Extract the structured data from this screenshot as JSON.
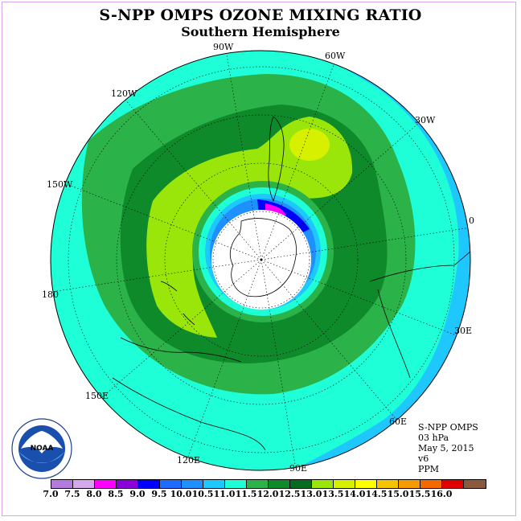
{
  "title": "S-NPP OMPS OZONE MIXING RATIO",
  "subtitle": "Southern Hemisphere",
  "longitude_labels": {
    "w90": "90W",
    "w60": "60W",
    "w30": "30W",
    "e0": "0",
    "w120": "120W",
    "w150": "150W",
    "d180": "180",
    "e30": "30E",
    "e60": "60E",
    "e90": "90E",
    "e120": "120E",
    "e150": "150E"
  },
  "info": {
    "instrument": "S-NPP OMPS",
    "level": "03 hPa",
    "date": "May 5, 2015",
    "version": "v6",
    "units": "PPM"
  },
  "logo_text": "NOAA",
  "colorbar": {
    "ticks": [
      "7.0",
      "7.5",
      "8.0",
      "8.5",
      "9.0",
      "9.5",
      "10.0",
      "10.5",
      "11.0",
      "11.5",
      "12.0",
      "12.5",
      "13.0",
      "13.5",
      "14.0",
      "14.5",
      "15.0",
      "15.5",
      "16.0"
    ],
    "colors": [
      "#b57bdc",
      "#d4a9ea",
      "#ff00ff",
      "#8b00d8",
      "#0000ff",
      "#1e6bff",
      "#1e90ff",
      "#1ec8ff",
      "#1effd8",
      "#2bb34a",
      "#0e8a2a",
      "#056b1e",
      "#9be60a",
      "#d6f000",
      "#ffff00",
      "#f5c400",
      "#f59a00",
      "#f56a00",
      "#e00000",
      "#8b5a3c"
    ]
  }
}
